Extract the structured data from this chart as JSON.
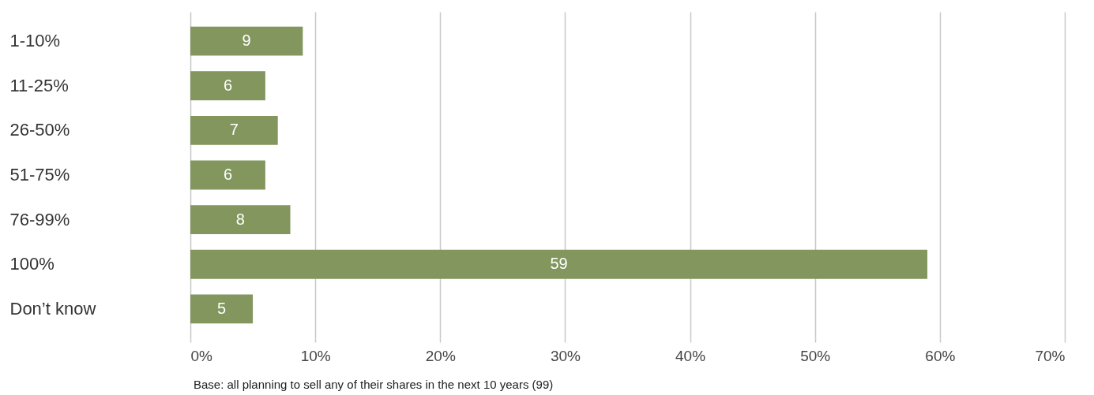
{
  "chart_data": {
    "type": "bar",
    "orientation": "horizontal",
    "categories": [
      "1-10%",
      "11-25%",
      "26-50%",
      "51-75%",
      "76-99%",
      "100%",
      "Don’t know"
    ],
    "values": [
      9,
      6,
      7,
      6,
      8,
      59,
      5
    ],
    "color": "#82965e",
    "data_labels": true,
    "xlim": [
      0,
      70
    ],
    "xticks": [
      {
        "value": 0,
        "label": "0%"
      },
      {
        "value": 10,
        "label": "10%"
      },
      {
        "value": 20,
        "label": "20%"
      },
      {
        "value": 30,
        "label": "30%"
      },
      {
        "value": 40,
        "label": "40%"
      },
      {
        "value": 50,
        "label": "50%"
      },
      {
        "value": 60,
        "label": "60%"
      },
      {
        "value": 70,
        "label": "70%"
      }
    ],
    "grid": "x",
    "annotations": [
      "Base: all planning to sell any of their shares in the next 10 years (99)"
    ]
  }
}
